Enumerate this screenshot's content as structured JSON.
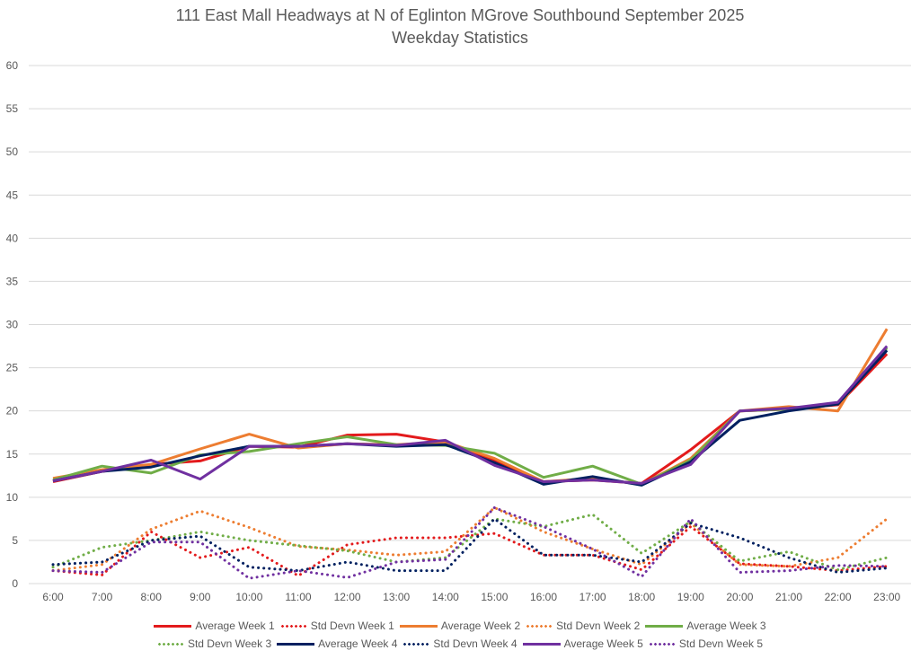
{
  "chart_data": {
    "type": "line",
    "title": "111 East Mall Headways at N of Eglinton MGrove Southbound September 2025",
    "subtitle": "Weekday Statistics",
    "xlabel": "",
    "ylabel": "",
    "ylim": [
      0,
      60
    ],
    "yticks": [
      "0",
      "5",
      "10",
      "15",
      "20",
      "25",
      "30",
      "35",
      "40",
      "45",
      "50",
      "55",
      "60"
    ],
    "grid": true,
    "legend_position": "bottom",
    "categories": [
      "6:00",
      "7:00",
      "8:00",
      "9:00",
      "10:00",
      "11:00",
      "12:00",
      "13:00",
      "14:00",
      "15:00",
      "16:00",
      "17:00",
      "18:00",
      "19:00",
      "20:00",
      "21:00",
      "22:00",
      "23:00"
    ],
    "series": [
      {
        "name": "Average Week 1",
        "style": "solid",
        "color": "#e31a1c",
        "values": [
          11.8,
          13.0,
          13.8,
          14.2,
          15.9,
          15.8,
          17.2,
          17.3,
          16.4,
          14.3,
          11.8,
          12.0,
          11.6,
          15.5,
          20.0,
          20.2,
          20.7,
          26.6
        ]
      },
      {
        "name": "Std Devn Week 1",
        "style": "dotted",
        "color": "#e31a1c",
        "values": [
          1.5,
          1.0,
          6.0,
          3.0,
          4.2,
          0.9,
          4.5,
          5.3,
          5.3,
          5.8,
          3.3,
          3.3,
          1.6,
          6.6,
          2.3,
          2.0,
          1.5,
          2.0
        ]
      },
      {
        "name": "Average Week 2",
        "style": "solid",
        "color": "#ed7d31",
        "values": [
          12.2,
          13.2,
          13.8,
          15.6,
          17.3,
          15.7,
          16.2,
          16.1,
          16.4,
          14.5,
          11.8,
          12.2,
          11.5,
          14.5,
          20.0,
          20.5,
          20.0,
          29.5
        ]
      },
      {
        "name": "Std Devn Week 2",
        "style": "dotted",
        "color": "#ed7d31",
        "values": [
          1.5,
          2.2,
          6.3,
          8.4,
          6.5,
          4.3,
          3.9,
          3.3,
          3.7,
          8.8,
          6.0,
          4.0,
          2.2,
          7.0,
          2.2,
          2.0,
          3.0,
          7.5
        ]
      },
      {
        "name": "Average Week 3",
        "style": "solid",
        "color": "#70ad47",
        "values": [
          12.0,
          13.6,
          12.8,
          14.9,
          15.3,
          16.2,
          17.0,
          16.1,
          16.0,
          15.1,
          12.3,
          13.6,
          11.5,
          14.3,
          20.0,
          20.2,
          20.8,
          27.3
        ]
      },
      {
        "name": "Std Devn Week 3",
        "style": "dotted",
        "color": "#70ad47",
        "values": [
          1.9,
          4.2,
          5.0,
          6.0,
          5.0,
          4.4,
          3.8,
          2.5,
          3.0,
          7.5,
          6.6,
          8.0,
          3.5,
          7.2,
          2.6,
          3.7,
          1.6,
          3.0
        ]
      },
      {
        "name": "Average Week 4",
        "style": "solid",
        "color": "#002060",
        "values": [
          11.9,
          13.0,
          13.5,
          14.8,
          15.9,
          15.9,
          16.2,
          15.9,
          16.1,
          14.0,
          11.5,
          12.4,
          11.4,
          14.1,
          18.9,
          20.0,
          20.8,
          27.0
        ]
      },
      {
        "name": "Std Devn Week 4",
        "style": "dotted",
        "color": "#002060",
        "values": [
          2.2,
          2.5,
          5.0,
          5.5,
          1.9,
          1.5,
          2.5,
          1.5,
          1.5,
          7.5,
          3.3,
          3.3,
          2.5,
          7.0,
          5.3,
          3.0,
          1.3,
          1.8
        ]
      },
      {
        "name": "Average Week 5",
        "style": "solid",
        "color": "#7030a0",
        "values": [
          11.9,
          13.0,
          14.3,
          12.1,
          15.9,
          15.9,
          16.2,
          16.0,
          16.6,
          13.7,
          11.8,
          12.0,
          11.6,
          13.8,
          20.0,
          20.3,
          21.0,
          27.5
        ]
      },
      {
        "name": "Std Devn Week 5",
        "style": "dotted",
        "color": "#7030a0",
        "values": [
          1.5,
          1.3,
          4.8,
          4.8,
          0.6,
          1.5,
          0.7,
          2.5,
          2.8,
          8.8,
          6.6,
          4.0,
          0.8,
          7.5,
          1.3,
          1.5,
          2.1,
          2.0
        ]
      }
    ]
  }
}
